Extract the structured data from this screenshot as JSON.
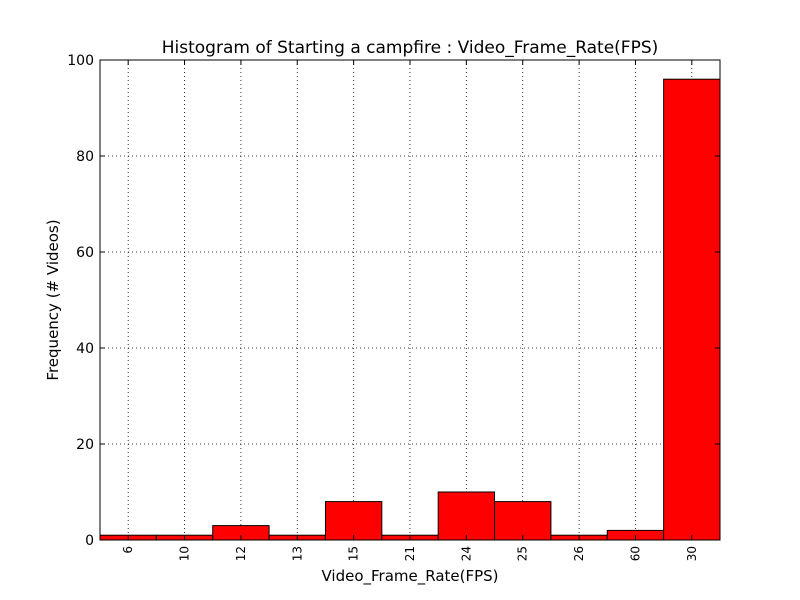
{
  "chart_data": {
    "type": "bar",
    "title": "Histogram of Starting a campfire : Video_Frame_Rate(FPS)",
    "xlabel": "Video_Frame_Rate(FPS)",
    "ylabel": "Frequency (# Videos)",
    "categories": [
      "6",
      "10",
      "12",
      "13",
      "15",
      "21",
      "24",
      "25",
      "26",
      "60",
      "30"
    ],
    "values": [
      1,
      1,
      3,
      1,
      8,
      1,
      10,
      8,
      1,
      2,
      96
    ],
    "ylim": [
      0,
      100
    ],
    "yticks": [
      0,
      20,
      40,
      60,
      80,
      100
    ],
    "grid": true,
    "bar_color": "#ff0000"
  }
}
